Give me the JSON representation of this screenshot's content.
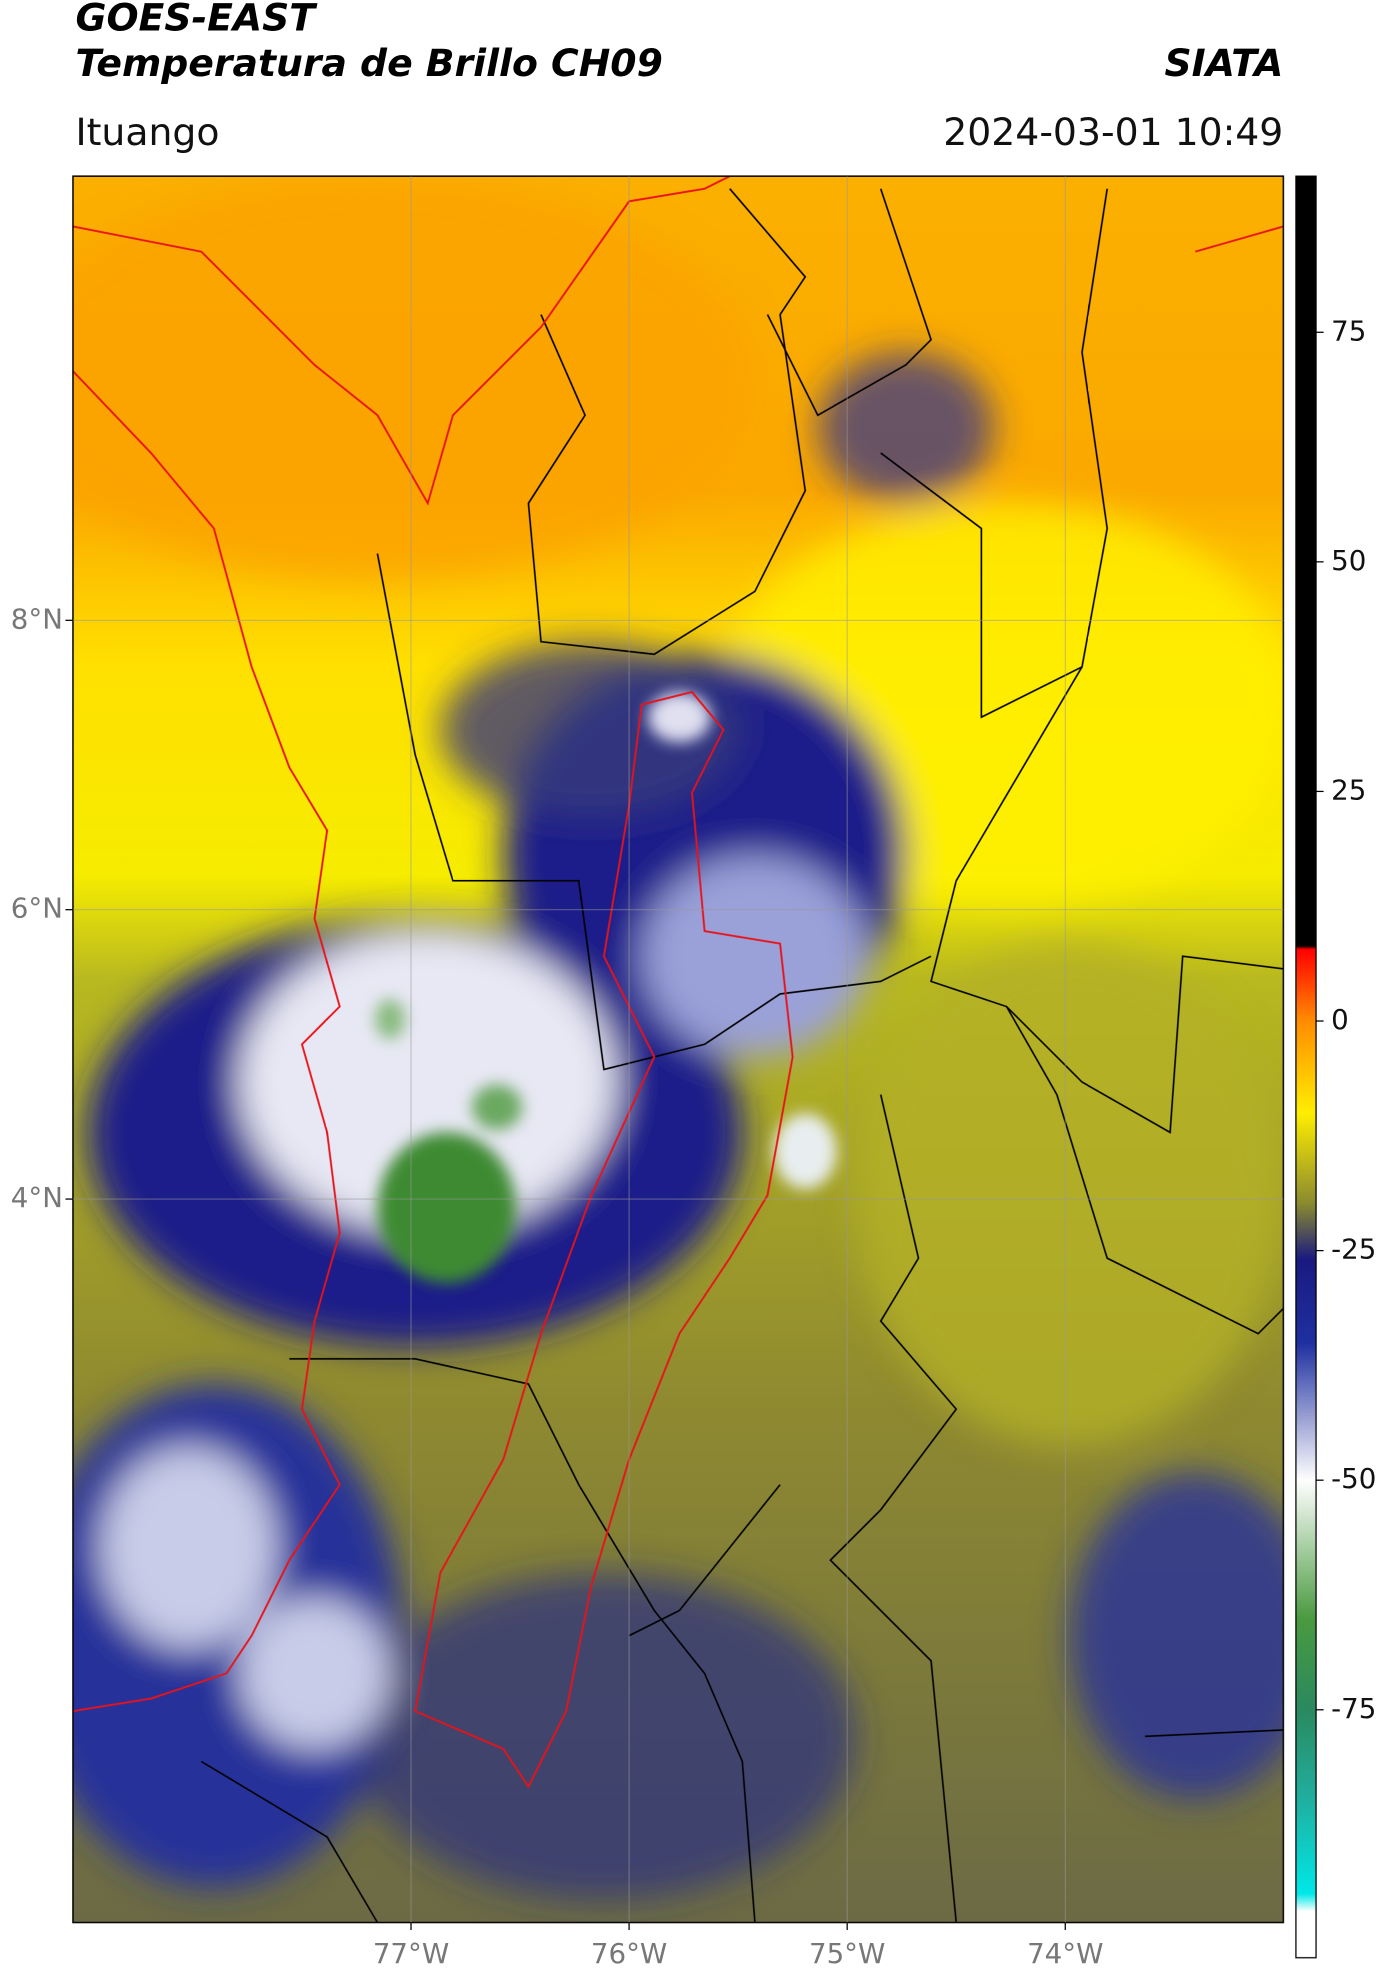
{
  "header": {
    "title": "GOES-EAST",
    "subtitle": "Temperatura de Brillo CH09",
    "organization": "SIATA",
    "location": "Ituango",
    "datetime": "2024-03-01 10:49"
  },
  "map": {
    "xlim": [
      -78.55,
      -73.0
    ],
    "ylim": [
      -1.0,
      11.07
    ],
    "xticks": [
      {
        "value": -77,
        "label": "77°W"
      },
      {
        "value": -76,
        "label": "76°W"
      },
      {
        "value": -75,
        "label": "75°W"
      },
      {
        "value": -74,
        "label": "74°W"
      }
    ],
    "yticks": [
      {
        "value": 4,
        "label": "4°N"
      },
      {
        "value": 6,
        "label": "6°N"
      },
      {
        "value": 8,
        "label": "8°N"
      }
    ],
    "grid": true
  },
  "colorbar": {
    "lim": [
      -102,
      92
    ],
    "ticks": [
      -75,
      -50,
      -25,
      0,
      25,
      50,
      75
    ]
  }
}
